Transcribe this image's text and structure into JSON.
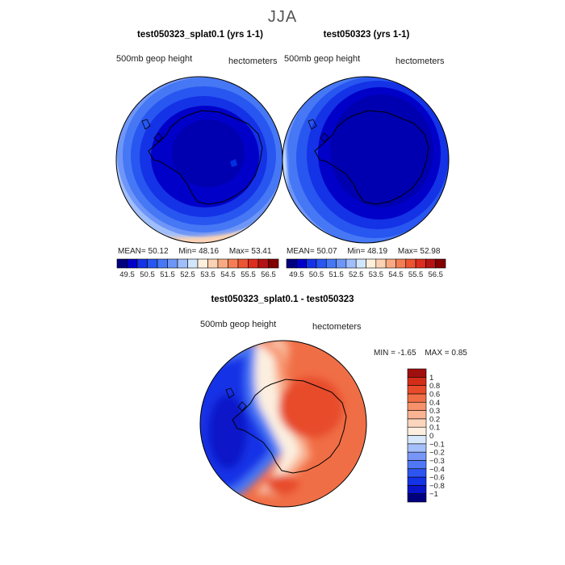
{
  "figure": {
    "title": "JJA"
  },
  "panels": [
    {
      "title": "test050323_splat0.1 (yrs 1-1)",
      "variable": "500mb geop height",
      "units": "hectometers",
      "stats": {
        "mean_label": "MEAN=",
        "mean": "50.12",
        "min_label": "Min=",
        "min": "48.16",
        "max_label": "Max=",
        "max": "53.41"
      }
    },
    {
      "title": "test050323 (yrs 1-1)",
      "variable": "500mb geop height",
      "units": "hectometers",
      "stats": {
        "mean_label": "MEAN=",
        "mean": "50.07",
        "min_label": "Min=",
        "min": "48.19",
        "max_label": "Max=",
        "max": "52.98"
      }
    },
    {
      "title": "test050323_splat0.1 - test050323",
      "variable": "500mb geop height",
      "units": "hectometers",
      "stats": {
        "min_label": "MIN =",
        "min": "-1.65",
        "max_label": "MAX =",
        "max": "0.85"
      }
    }
  ],
  "chart_data": [
    {
      "type": "heatmap",
      "projection": "south polar stereographic",
      "title": "test050323_splat0.1 (yrs 1-1)",
      "field": "500mb geop height",
      "units": "hectometers",
      "mean": 50.12,
      "min": 48.16,
      "max": 53.41,
      "colorbar_levels": [
        49.5,
        50.5,
        51.5,
        52.5,
        53.5,
        54.5,
        55.5,
        56.5
      ],
      "colorbar_colors": [
        "#00007f",
        "#0000c8",
        "#1432e6",
        "#2856f0",
        "#4678f5",
        "#6e96f8",
        "#a0befa",
        "#d2e6fc",
        "#fff0dc",
        "#fcd2b4",
        "#faaa82",
        "#f57d55",
        "#eb5532",
        "#dc2d1e",
        "#b41414",
        "#820000"
      ]
    },
    {
      "type": "heatmap",
      "projection": "south polar stereographic",
      "title": "test050323 (yrs 1-1)",
      "field": "500mb geop height",
      "units": "hectometers",
      "mean": 50.07,
      "min": 48.19,
      "max": 52.98,
      "colorbar_levels": [
        49.5,
        50.5,
        51.5,
        52.5,
        53.5,
        54.5,
        55.5,
        56.5
      ],
      "colorbar_colors": [
        "#00007f",
        "#0000c8",
        "#1432e6",
        "#2856f0",
        "#4678f5",
        "#6e96f8",
        "#a0befa",
        "#d2e6fc",
        "#fff0dc",
        "#fcd2b4",
        "#faaa82",
        "#f57d55",
        "#eb5532",
        "#dc2d1e",
        "#b41414",
        "#820000"
      ]
    },
    {
      "type": "heatmap",
      "projection": "south polar stereographic",
      "title": "test050323_splat0.1 - test050323",
      "field": "500mb geop height",
      "units": "hectometers",
      "min": -1.65,
      "max": 0.85,
      "colorbar_levels": [
        "-1",
        "-0.8",
        "-0.6",
        "-0.4",
        "-0.3",
        "-0.2",
        "-0.1",
        "0",
        "0.1",
        "0.2",
        "0.3",
        "0.4",
        "0.6",
        "0.8",
        "1"
      ],
      "colorbar_colors": [
        "#00007f",
        "#0a14c8",
        "#1432e6",
        "#2d55f0",
        "#5078f5",
        "#7896f8",
        "#a5bffa",
        "#d7e7fc",
        "#fcefe0",
        "#fbd5bd",
        "#f9b493",
        "#f6916b",
        "#f06e46",
        "#e74b2a",
        "#d22d19",
        "#a00f0f"
      ]
    }
  ]
}
